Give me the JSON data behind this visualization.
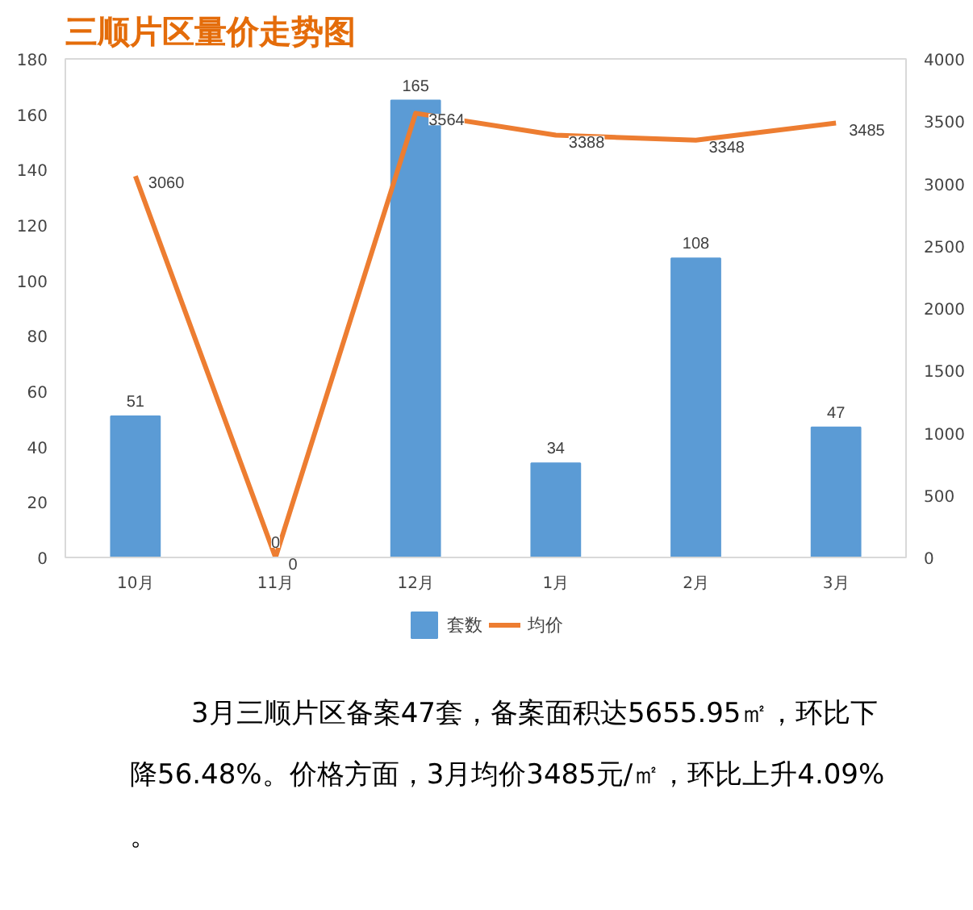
{
  "chart_data": {
    "type": "bar",
    "title": "三顺片区量价走势图",
    "categories": [
      "10月",
      "11月",
      "12月",
      "1月",
      "2月",
      "3月"
    ],
    "series": [
      {
        "name": "套数",
        "type": "bar",
        "color": "#5b9bd5",
        "values": [
          51,
          0,
          165,
          34,
          108,
          47
        ]
      },
      {
        "name": "均价",
        "type": "line",
        "axis": "y2",
        "color": "#ed7d31",
        "values": [
          3060,
          0,
          3564,
          3388,
          3348,
          3485
        ]
      }
    ],
    "ylim": [
      0,
      180
    ],
    "yticks": [
      0,
      20,
      40,
      60,
      80,
      100,
      120,
      140,
      160,
      180
    ],
    "y2lim": [
      0,
      4000
    ],
    "y2ticks": [
      0,
      500,
      1000,
      1500,
      2000,
      2500,
      3000,
      3500,
      4000
    ],
    "data_labels": true,
    "legend": "bottom",
    "grid": false,
    "marker": "none",
    "line_style": "solid",
    "annotations": [
      "3月三顺片区备案47套，备案面积达5655.95㎡，环比下降56.48%。价格方面，3月均价3485元/㎡，环比上升4.09%。"
    ]
  }
}
